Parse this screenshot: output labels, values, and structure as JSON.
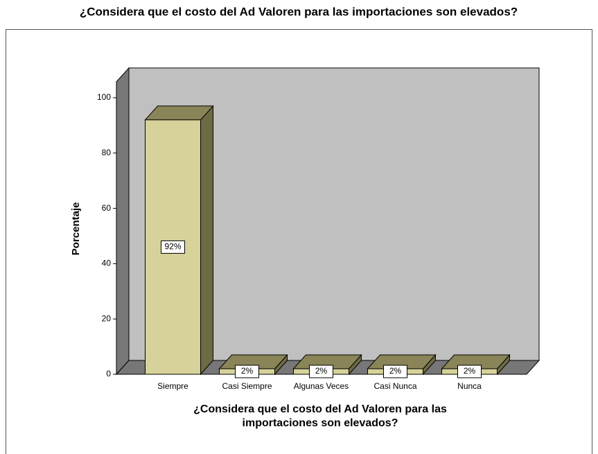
{
  "chart_data": {
    "type": "bar3d",
    "title": "¿Considera que el costo del Ad Valoren para las importaciones son elevados?",
    "ylabel": "Porcentaje",
    "xlabel": [
      "¿Considera que el costo del Ad Valoren para las",
      "importaciones son elevados?"
    ],
    "categories": [
      "Siempre",
      "Casi Siempre",
      "Algunas Veces",
      "Casi Nunca",
      "Nunca"
    ],
    "values": [
      92,
      2,
      2,
      2,
      2
    ],
    "value_labels": [
      "92%",
      "2%",
      "2%",
      "2%",
      "2%"
    ],
    "color": "#d6d29a",
    "ylim": [
      0,
      100
    ],
    "yticks": [
      0,
      20,
      40,
      60,
      80,
      100
    ]
  }
}
